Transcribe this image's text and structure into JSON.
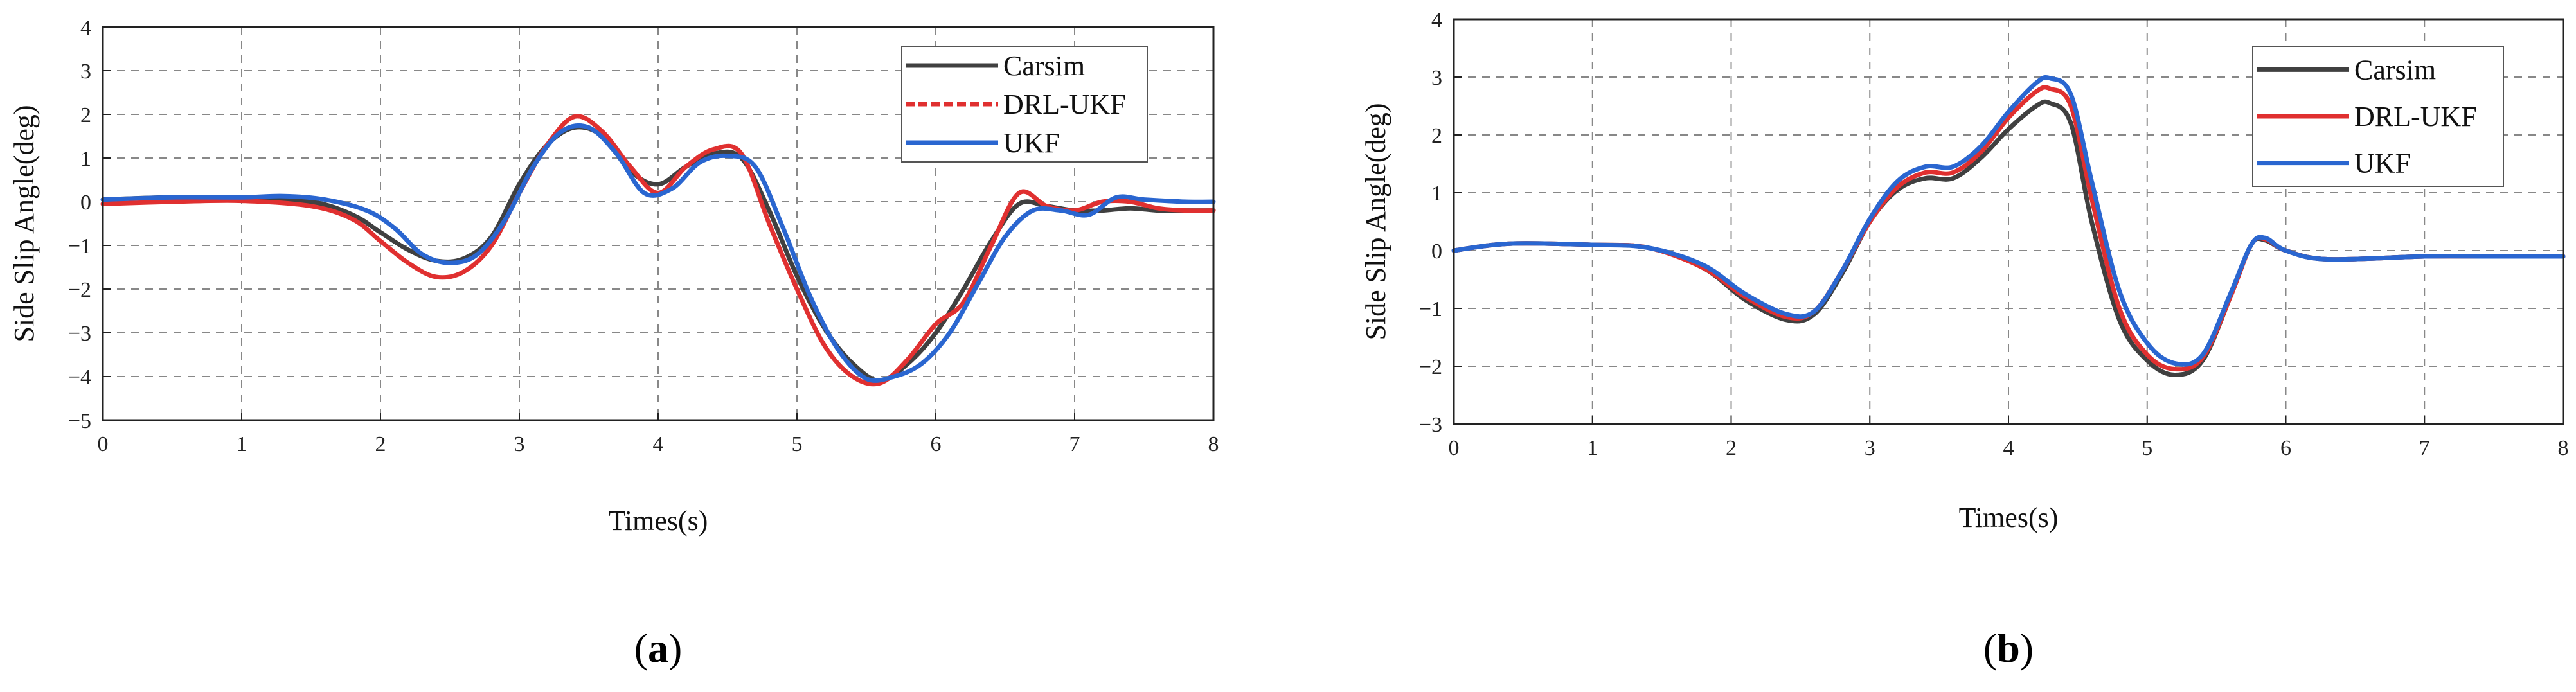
{
  "chart_data": [
    {
      "type": "line",
      "panel_label": "a",
      "xlabel": "Times(s)",
      "ylabel": "Side Slip Angle(deg)",
      "xlim": [
        0,
        8
      ],
      "ylim": [
        -5,
        4
      ],
      "xticks": [
        0,
        1,
        2,
        3,
        4,
        5,
        6,
        7,
        8
      ],
      "yticks": [
        -5,
        -4,
        -3,
        -2,
        -1,
        0,
        1,
        2,
        3,
        4
      ],
      "grid": true,
      "legend_position": "top-right",
      "series": [
        {
          "name": "Carsim",
          "color": "#404040",
          "dashed": false,
          "x": [
            0,
            0.5,
            1.0,
            1.5,
            1.8,
            2.0,
            2.2,
            2.4,
            2.6,
            2.8,
            3.0,
            3.2,
            3.4,
            3.6,
            3.8,
            4.0,
            4.2,
            4.4,
            4.6,
            4.8,
            5.0,
            5.2,
            5.4,
            5.6,
            5.8,
            6.0,
            6.2,
            6.4,
            6.6,
            6.8,
            7.0,
            7.2,
            7.4,
            7.6,
            7.8,
            8.0
          ],
          "y": [
            0.05,
            0.1,
            0.08,
            0.0,
            -0.3,
            -0.7,
            -1.1,
            -1.35,
            -1.3,
            -0.8,
            0.4,
            1.3,
            1.7,
            1.5,
            0.7,
            0.4,
            0.8,
            1.1,
            1.0,
            -0.2,
            -1.7,
            -2.9,
            -3.7,
            -4.1,
            -3.7,
            -3.0,
            -2.0,
            -0.9,
            -0.05,
            -0.1,
            -0.2,
            -0.2,
            -0.15,
            -0.2,
            -0.2,
            -0.2
          ]
        },
        {
          "name": "DRL-UKF",
          "color": "#e03030",
          "dashed": true,
          "x": [
            0,
            0.5,
            1.0,
            1.5,
            1.8,
            2.0,
            2.2,
            2.4,
            2.6,
            2.8,
            3.0,
            3.2,
            3.4,
            3.6,
            3.8,
            4.0,
            4.2,
            4.4,
            4.6,
            4.8,
            5.0,
            5.2,
            5.4,
            5.6,
            5.8,
            6.0,
            6.2,
            6.4,
            6.6,
            6.8,
            7.0,
            7.2,
            7.4,
            7.6,
            7.8,
            8.0
          ],
          "y": [
            -0.05,
            0.0,
            0.02,
            -0.1,
            -0.4,
            -0.9,
            -1.4,
            -1.72,
            -1.6,
            -1.0,
            0.2,
            1.3,
            1.95,
            1.6,
            0.8,
            0.2,
            0.8,
            1.2,
            1.1,
            -0.5,
            -2.0,
            -3.3,
            -4.0,
            -4.15,
            -3.6,
            -2.8,
            -2.3,
            -1.0,
            0.2,
            -0.1,
            -0.2,
            0.0,
            0.0,
            -0.15,
            -0.2,
            -0.2
          ]
        },
        {
          "name": "UKF",
          "color": "#2a66d0",
          "dashed": false,
          "x": [
            0,
            0.5,
            1.0,
            1.3,
            1.6,
            1.9,
            2.1,
            2.3,
            2.5,
            2.7,
            2.9,
            3.1,
            3.3,
            3.5,
            3.7,
            3.9,
            4.1,
            4.3,
            4.5,
            4.7,
            4.9,
            5.1,
            5.3,
            5.5,
            5.7,
            5.9,
            6.1,
            6.3,
            6.5,
            6.7,
            6.9,
            7.1,
            7.3,
            7.5,
            7.8,
            8.0
          ],
          "y": [
            0.05,
            0.1,
            0.1,
            0.13,
            0.05,
            -0.2,
            -0.6,
            -1.2,
            -1.4,
            -1.2,
            -0.4,
            0.8,
            1.6,
            1.7,
            1.1,
            0.2,
            0.3,
            0.9,
            1.05,
            0.8,
            -0.6,
            -2.2,
            -3.4,
            -4.05,
            -4.0,
            -3.7,
            -3.0,
            -1.9,
            -0.8,
            -0.2,
            -0.2,
            -0.3,
            0.1,
            0.05,
            0.0,
            0.0
          ]
        }
      ]
    },
    {
      "type": "line",
      "panel_label": "b",
      "xlabel": "Times(s)",
      "ylabel": "Side Slip Angle(deg)",
      "xlim": [
        0,
        8
      ],
      "ylim": [
        -3,
        4
      ],
      "xticks": [
        0,
        1,
        2,
        3,
        4,
        5,
        6,
        7,
        8
      ],
      "yticks": [
        -3,
        -2,
        -1,
        0,
        1,
        2,
        3,
        4
      ],
      "grid": true,
      "legend_position": "top-right",
      "series": [
        {
          "name": "Carsim",
          "color": "#404040",
          "dashed": false,
          "x": [
            0,
            0.4,
            1.0,
            1.4,
            1.8,
            2.1,
            2.4,
            2.6,
            2.8,
            3.0,
            3.2,
            3.4,
            3.6,
            3.8,
            4.0,
            4.2,
            4.3,
            4.45,
            4.6,
            4.8,
            5.0,
            5.2,
            5.4,
            5.6,
            5.75,
            5.85,
            6.0,
            6.3,
            7.0,
            7.5,
            8.0
          ],
          "y": [
            0.0,
            0.12,
            0.1,
            0.05,
            -0.3,
            -0.85,
            -1.2,
            -1.1,
            -0.4,
            0.5,
            1.05,
            1.25,
            1.25,
            1.6,
            2.1,
            2.5,
            2.55,
            2.2,
            0.5,
            -1.2,
            -1.9,
            -2.15,
            -1.9,
            -0.8,
            0.1,
            0.18,
            0.0,
            -0.15,
            -0.1,
            -0.1,
            -0.1
          ]
        },
        {
          "name": "DRL-UKF",
          "color": "#e03030",
          "dashed": false,
          "x": [
            0,
            0.4,
            1.0,
            1.4,
            1.8,
            2.1,
            2.4,
            2.6,
            2.8,
            3.0,
            3.2,
            3.4,
            3.6,
            3.8,
            4.0,
            4.2,
            4.3,
            4.45,
            4.6,
            4.8,
            5.0,
            5.2,
            5.4,
            5.6,
            5.75,
            5.85,
            6.0,
            6.3,
            7.0,
            7.5,
            8.0
          ],
          "y": [
            0.0,
            0.12,
            0.1,
            0.05,
            -0.3,
            -0.8,
            -1.15,
            -1.05,
            -0.35,
            0.5,
            1.1,
            1.35,
            1.35,
            1.7,
            2.3,
            2.75,
            2.8,
            2.5,
            0.9,
            -1.0,
            -1.8,
            -2.05,
            -1.85,
            -0.8,
            0.1,
            0.2,
            0.0,
            -0.15,
            -0.1,
            -0.1,
            -0.1
          ]
        },
        {
          "name": "UKF",
          "color": "#2a66d0",
          "dashed": false,
          "x": [
            0,
            0.4,
            1.0,
            1.4,
            1.8,
            2.1,
            2.4,
            2.6,
            2.8,
            3.0,
            3.2,
            3.4,
            3.6,
            3.8,
            4.0,
            4.2,
            4.3,
            4.45,
            4.6,
            4.8,
            5.0,
            5.2,
            5.4,
            5.6,
            5.75,
            5.85,
            6.0,
            6.3,
            7.0,
            7.5,
            8.0
          ],
          "y": [
            0.0,
            0.12,
            0.1,
            0.05,
            -0.25,
            -0.75,
            -1.1,
            -1.05,
            -0.35,
            0.55,
            1.2,
            1.45,
            1.45,
            1.8,
            2.4,
            2.9,
            2.98,
            2.7,
            1.2,
            -0.7,
            -1.6,
            -1.95,
            -1.8,
            -0.75,
            0.1,
            0.22,
            0.0,
            -0.15,
            -0.1,
            -0.1,
            -0.1
          ]
        }
      ]
    }
  ]
}
